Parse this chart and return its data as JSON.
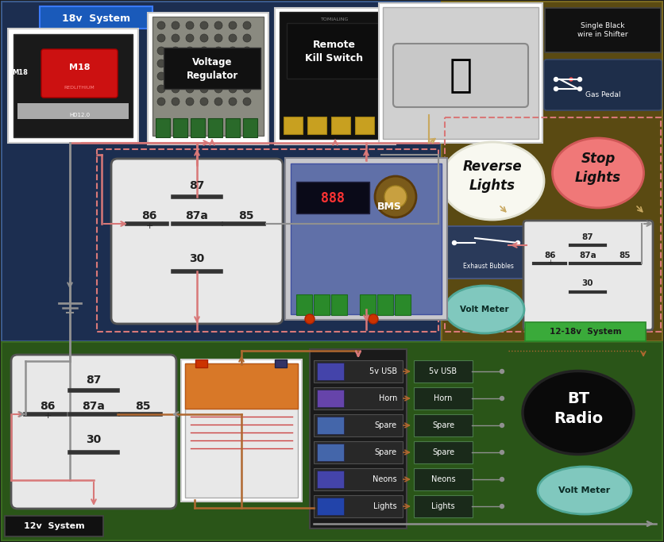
{
  "fig_width": 8.36,
  "fig_height": 6.83,
  "dpi": 100,
  "bg_color": "#1a1a1a",
  "top_left_bg": "#1c2e50",
  "top_right_bg": "#5a4a12",
  "bottom_bg": "#2a5518",
  "title_18v": "18v  System",
  "title_12v": "12v  System",
  "title_12_18v": "12-18v  System",
  "label_voltage_reg": "Voltage\nRegulator",
  "label_kill_switch": "Remote\nKill Switch",
  "label_bms": "BMS",
  "label_reverse": "Reverse\nLights",
  "label_stop": "Stop\nLights",
  "label_exhaust": "Exhaust Bubbles",
  "label_volt_meter_1": "Volt Meter",
  "label_volt_meter_2": "Volt Meter",
  "label_bt_radio": "BT\nRadio",
  "label_shifter": "Single Black\nwire in Shifter",
  "label_gas_pedal": "Gas Pedal",
  "fuse_labels": [
    "5v USB",
    "Horn",
    "Spare",
    "Spare",
    "Neons",
    "Lights"
  ],
  "wire_red": "#d87878",
  "wire_gray": "#909090",
  "wire_brown": "#b06830",
  "wire_tan": "#c8a860",
  "relay_fill": "#e8e8e8",
  "relay_edge": "#555555",
  "relay_terminal_color": "#222222"
}
